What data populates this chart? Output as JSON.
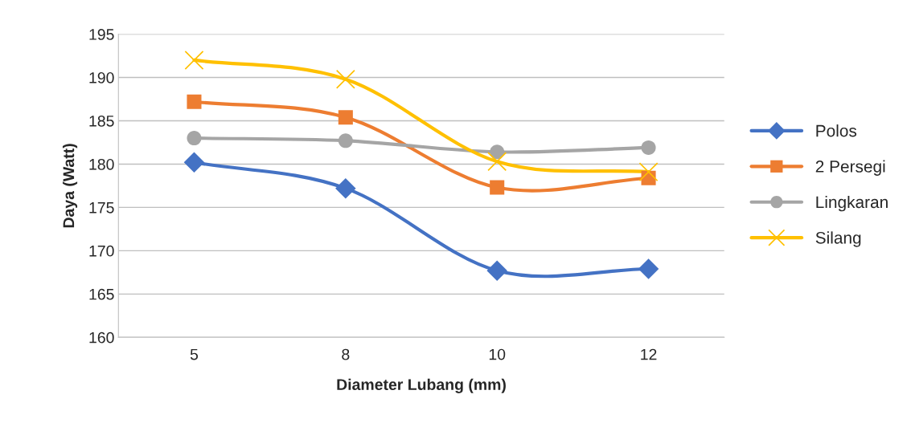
{
  "chart_data": {
    "type": "line",
    "xlabel": "Diameter Lubang (mm)",
    "ylabel": "Daya (Watt)",
    "categories": [
      "5",
      "8",
      "10",
      "12"
    ],
    "series": [
      {
        "name": "Polos",
        "color": "#4472c4",
        "marker": "diamond",
        "values": [
          180.2,
          177.2,
          167.7,
          167.9
        ]
      },
      {
        "name": "2 Persegi",
        "color": "#ed7d31",
        "marker": "square",
        "values": [
          187.2,
          185.4,
          177.3,
          178.4
        ]
      },
      {
        "name": "Lingkaran",
        "color": "#a5a5a5",
        "marker": "circle",
        "values": [
          183.0,
          182.7,
          181.4,
          181.9
        ]
      },
      {
        "name": "Silang",
        "color": "#ffc000",
        "marker": "cross",
        "values": [
          192.0,
          189.8,
          180.3,
          179.1
        ]
      }
    ],
    "ylim": [
      160,
      195
    ],
    "yticks": [
      160,
      165,
      170,
      175,
      180,
      185,
      190,
      195
    ],
    "grid": "y",
    "legend": "right",
    "line_style": "solid"
  }
}
